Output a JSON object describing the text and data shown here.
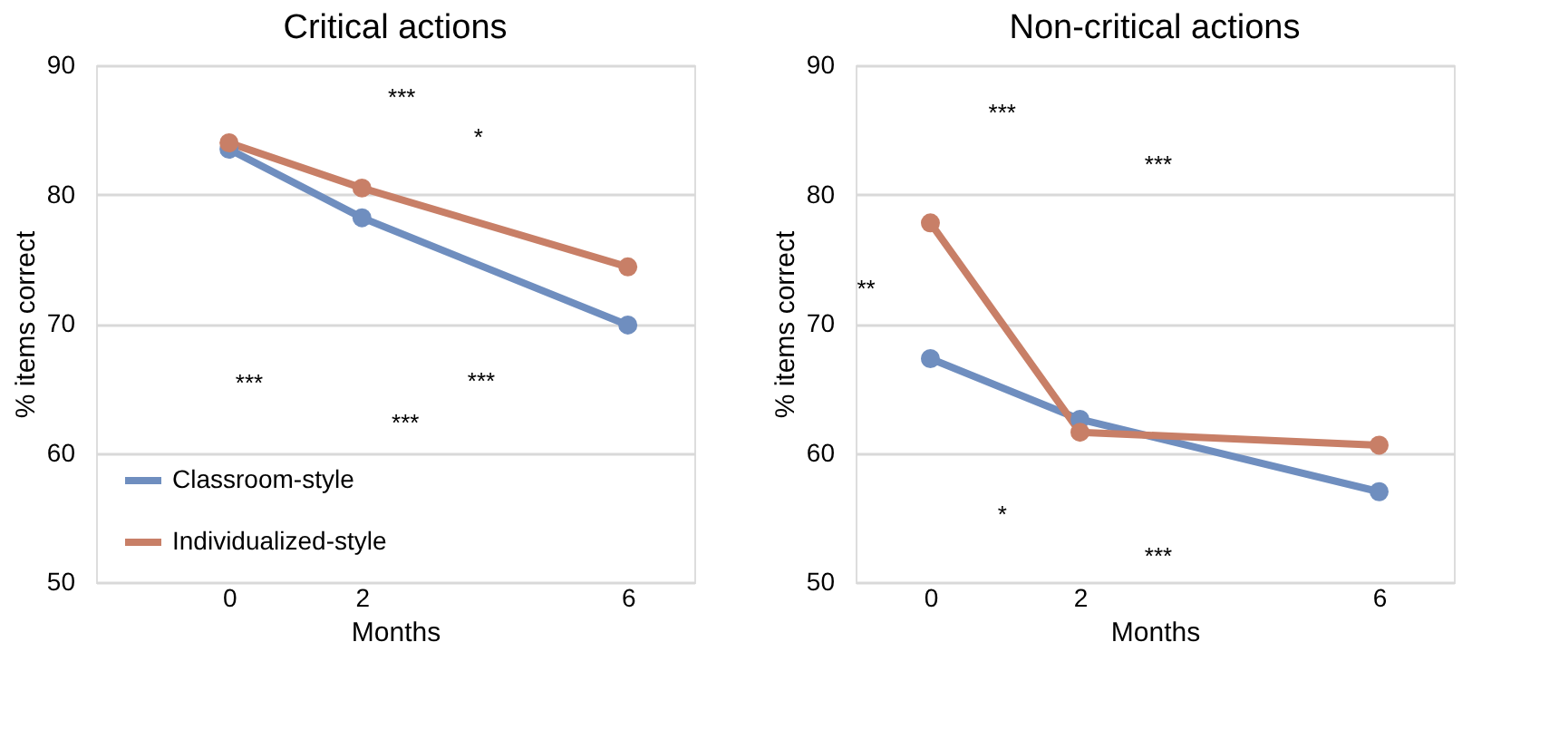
{
  "chart_data": [
    {
      "type": "line",
      "title": "Critical actions",
      "xlabel": "Months",
      "ylabel": "% items correct",
      "x": [
        0,
        2,
        6
      ],
      "xlim": [
        -2,
        7
      ],
      "xticks": [
        0,
        2,
        6
      ],
      "ylim": [
        50,
        90
      ],
      "yticks": [
        50,
        60,
        70,
        80,
        90
      ],
      "grid": "y",
      "legend": "bottom left",
      "marker": "circle",
      "line_style": "solid",
      "series": [
        {
          "name": "Classroom-style",
          "color": "#6f8ebf",
          "values": [
            83.5,
            78.2,
            69.9
          ]
        },
        {
          "name": "Individualized-style",
          "color": "#c87f67",
          "values": [
            84.0,
            80.5,
            74.4
          ]
        }
      ],
      "annotations": [
        "***",
        "*",
        "***",
        "***",
        "***"
      ]
    },
    {
      "type": "line",
      "title": "Non-critical actions",
      "xlabel": "Months",
      "ylabel": "% items correct",
      "x": [
        0,
        2,
        6
      ],
      "xlim": [
        -1,
        7
      ],
      "xticks": [
        0,
        2,
        6
      ],
      "ylim": [
        50,
        90
      ],
      "yticks": [
        50,
        60,
        70,
        80,
        90
      ],
      "grid": "y",
      "legend": false,
      "marker": "circle",
      "line_style": "solid",
      "series": [
        {
          "color": "#6f8ebf",
          "values": [
            67.3,
            62.6,
            57.0
          ]
        },
        {
          "color": "#c87f67",
          "values": [
            77.8,
            61.6,
            60.6
          ]
        }
      ],
      "annotations": [
        "***",
        "***",
        "**",
        "*",
        "***"
      ]
    }
  ]
}
